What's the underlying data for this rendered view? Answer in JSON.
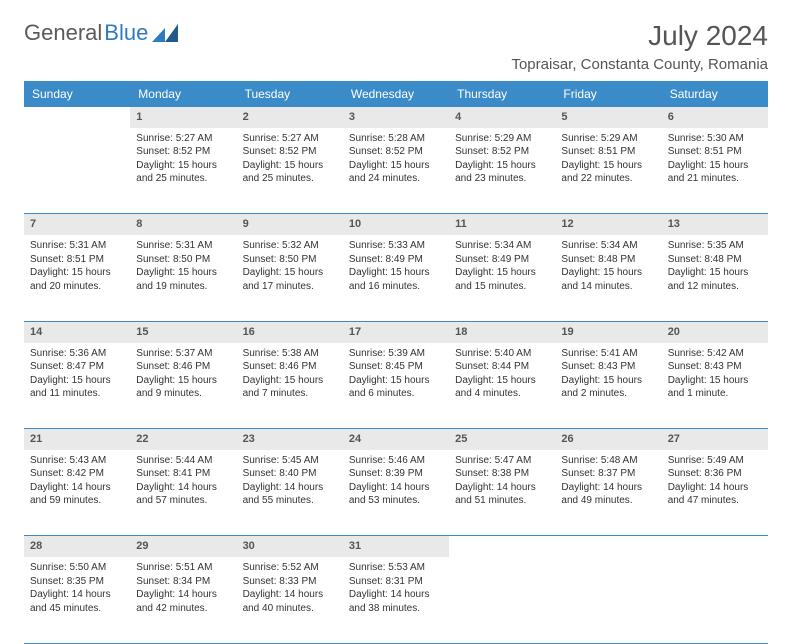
{
  "logo": {
    "text1": "General",
    "text2": "Blue"
  },
  "title": "July 2024",
  "location": "Topraisar, Constanta County, Romania",
  "colors": {
    "header_bg": "#3b8bc8",
    "header_text": "#ffffff",
    "daynum_bg": "#e9e9e9",
    "border": "#3b8bc8",
    "logo_gray": "#5a5a5a",
    "logo_blue": "#2f7bbf"
  },
  "weekdays": [
    "Sunday",
    "Monday",
    "Tuesday",
    "Wednesday",
    "Thursday",
    "Friday",
    "Saturday"
  ],
  "weeks": [
    {
      "nums": [
        "",
        "1",
        "2",
        "3",
        "4",
        "5",
        "6"
      ],
      "cells": [
        null,
        {
          "sunrise": "5:27 AM",
          "sunset": "8:52 PM",
          "daylight": "15 hours and 25 minutes."
        },
        {
          "sunrise": "5:27 AM",
          "sunset": "8:52 PM",
          "daylight": "15 hours and 25 minutes."
        },
        {
          "sunrise": "5:28 AM",
          "sunset": "8:52 PM",
          "daylight": "15 hours and 24 minutes."
        },
        {
          "sunrise": "5:29 AM",
          "sunset": "8:52 PM",
          "daylight": "15 hours and 23 minutes."
        },
        {
          "sunrise": "5:29 AM",
          "sunset": "8:51 PM",
          "daylight": "15 hours and 22 minutes."
        },
        {
          "sunrise": "5:30 AM",
          "sunset": "8:51 PM",
          "daylight": "15 hours and 21 minutes."
        }
      ]
    },
    {
      "nums": [
        "7",
        "8",
        "9",
        "10",
        "11",
        "12",
        "13"
      ],
      "cells": [
        {
          "sunrise": "5:31 AM",
          "sunset": "8:51 PM",
          "daylight": "15 hours and 20 minutes."
        },
        {
          "sunrise": "5:31 AM",
          "sunset": "8:50 PM",
          "daylight": "15 hours and 19 minutes."
        },
        {
          "sunrise": "5:32 AM",
          "sunset": "8:50 PM",
          "daylight": "15 hours and 17 minutes."
        },
        {
          "sunrise": "5:33 AM",
          "sunset": "8:49 PM",
          "daylight": "15 hours and 16 minutes."
        },
        {
          "sunrise": "5:34 AM",
          "sunset": "8:49 PM",
          "daylight": "15 hours and 15 minutes."
        },
        {
          "sunrise": "5:34 AM",
          "sunset": "8:48 PM",
          "daylight": "15 hours and 14 minutes."
        },
        {
          "sunrise": "5:35 AM",
          "sunset": "8:48 PM",
          "daylight": "15 hours and 12 minutes."
        }
      ]
    },
    {
      "nums": [
        "14",
        "15",
        "16",
        "17",
        "18",
        "19",
        "20"
      ],
      "cells": [
        {
          "sunrise": "5:36 AM",
          "sunset": "8:47 PM",
          "daylight": "15 hours and 11 minutes."
        },
        {
          "sunrise": "5:37 AM",
          "sunset": "8:46 PM",
          "daylight": "15 hours and 9 minutes."
        },
        {
          "sunrise": "5:38 AM",
          "sunset": "8:46 PM",
          "daylight": "15 hours and 7 minutes."
        },
        {
          "sunrise": "5:39 AM",
          "sunset": "8:45 PM",
          "daylight": "15 hours and 6 minutes."
        },
        {
          "sunrise": "5:40 AM",
          "sunset": "8:44 PM",
          "daylight": "15 hours and 4 minutes."
        },
        {
          "sunrise": "5:41 AM",
          "sunset": "8:43 PM",
          "daylight": "15 hours and 2 minutes."
        },
        {
          "sunrise": "5:42 AM",
          "sunset": "8:43 PM",
          "daylight": "15 hours and 1 minute."
        }
      ]
    },
    {
      "nums": [
        "21",
        "22",
        "23",
        "24",
        "25",
        "26",
        "27"
      ],
      "cells": [
        {
          "sunrise": "5:43 AM",
          "sunset": "8:42 PM",
          "daylight": "14 hours and 59 minutes."
        },
        {
          "sunrise": "5:44 AM",
          "sunset": "8:41 PM",
          "daylight": "14 hours and 57 minutes."
        },
        {
          "sunrise": "5:45 AM",
          "sunset": "8:40 PM",
          "daylight": "14 hours and 55 minutes."
        },
        {
          "sunrise": "5:46 AM",
          "sunset": "8:39 PM",
          "daylight": "14 hours and 53 minutes."
        },
        {
          "sunrise": "5:47 AM",
          "sunset": "8:38 PM",
          "daylight": "14 hours and 51 minutes."
        },
        {
          "sunrise": "5:48 AM",
          "sunset": "8:37 PM",
          "daylight": "14 hours and 49 minutes."
        },
        {
          "sunrise": "5:49 AM",
          "sunset": "8:36 PM",
          "daylight": "14 hours and 47 minutes."
        }
      ]
    },
    {
      "nums": [
        "28",
        "29",
        "30",
        "31",
        "",
        "",
        ""
      ],
      "cells": [
        {
          "sunrise": "5:50 AM",
          "sunset": "8:35 PM",
          "daylight": "14 hours and 45 minutes."
        },
        {
          "sunrise": "5:51 AM",
          "sunset": "8:34 PM",
          "daylight": "14 hours and 42 minutes."
        },
        {
          "sunrise": "5:52 AM",
          "sunset": "8:33 PM",
          "daylight": "14 hours and 40 minutes."
        },
        {
          "sunrise": "5:53 AM",
          "sunset": "8:31 PM",
          "daylight": "14 hours and 38 minutes."
        },
        null,
        null,
        null
      ]
    }
  ],
  "labels": {
    "sunrise": "Sunrise:",
    "sunset": "Sunset:",
    "daylight": "Daylight:"
  }
}
